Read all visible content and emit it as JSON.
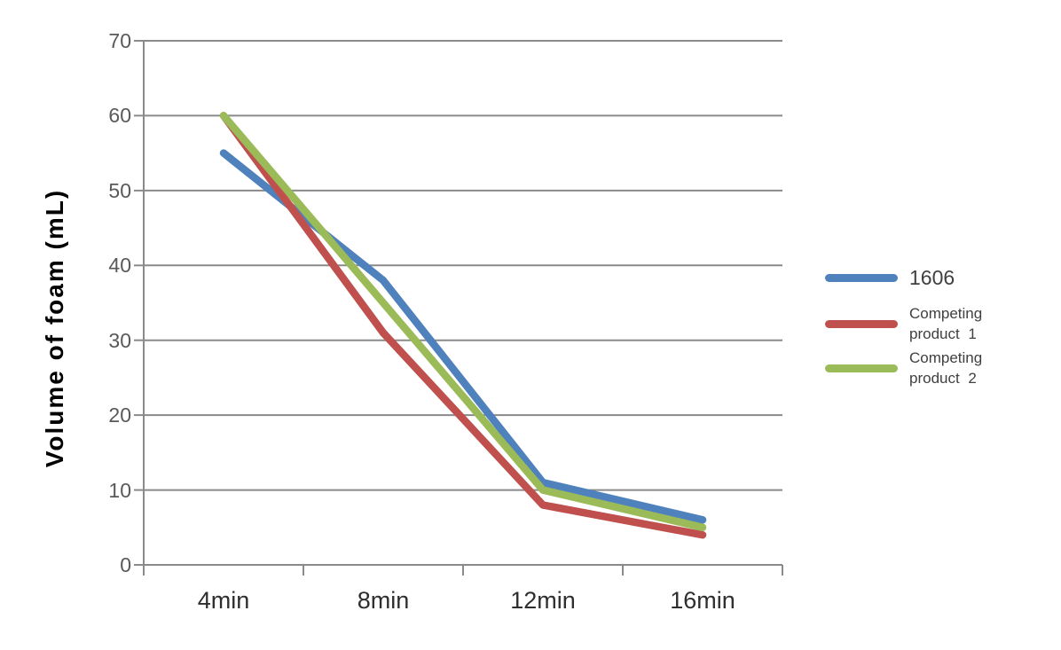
{
  "chart_data": {
    "type": "line",
    "title": "",
    "xlabel": "",
    "ylabel": "Volume of foam (mL)",
    "categories": [
      "4min",
      "8min",
      "12min",
      "16min"
    ],
    "series": [
      {
        "name": "1606",
        "color": "#4F81BD",
        "values": [
          55,
          38,
          11,
          6
        ]
      },
      {
        "name": "Competing product 1",
        "color": "#C0504D",
        "values": [
          60,
          31,
          8,
          4
        ]
      },
      {
        "name": "Competing product 2",
        "color": "#9BBB59",
        "values": [
          60,
          35,
          10,
          5
        ]
      }
    ],
    "ylim": [
      0,
      70
    ],
    "ytick_step": 10,
    "yticks": [
      "0",
      "10",
      "20",
      "30",
      "40",
      "50",
      "60",
      "70"
    ],
    "grid": "horizontal-only",
    "gridline_color": "#8a8a8a",
    "axis_color": "#8a8a8a",
    "line_width": 8.5,
    "legend_position": "right-middle"
  },
  "legend": {
    "items": [
      {
        "lines": [
          "1606"
        ],
        "color": "#4F81BD"
      },
      {
        "lines": [
          "Competing",
          "product 1"
        ],
        "color": "#C0504D"
      },
      {
        "lines": [
          "Competing",
          "product 2"
        ],
        "color": "#9BBB59"
      }
    ]
  }
}
